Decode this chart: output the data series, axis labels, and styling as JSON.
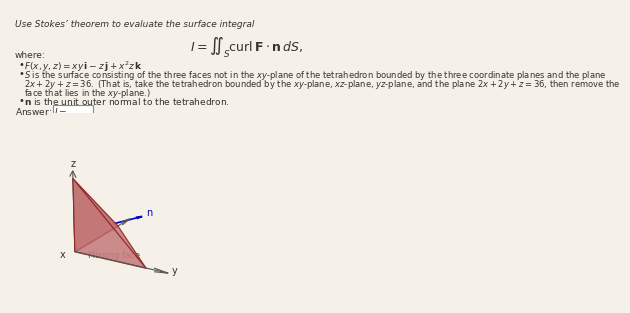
{
  "background_color": "#f5f0e8",
  "title_text": "Use Stokes’ theorem to evaluate the surface integral",
  "integral_text": "I = ∬_S curl F · n dS,",
  "where_text": "where:",
  "bullet1": "F(x, y, z) = xy i − z j + x²z k",
  "bullet2": "S is the surface consisting of the three faces not in the xy-plane of the tetrahedron bounded by the three coordinate planes and the plane",
  "bullet2b": "2x + 2y + z = 36. (That is, take the tetrahedron bounded by the xy-plane, xz-plane, yz-plane, and the plane 2x + 2y + z = 36, then remove the",
  "bullet2c": "face that lies in the xy-plane.)",
  "bullet3": "n is the unit outer normal to the tetrahedron.",
  "answer_text": "Answer: I =",
  "face_color": "#c07070",
  "missing_face_color": "#e8c8c8",
  "edge_color": "#8b2020",
  "axis_color": "#555555",
  "normal_arrow_color": "#0000cc",
  "annotation_color": "#555555"
}
